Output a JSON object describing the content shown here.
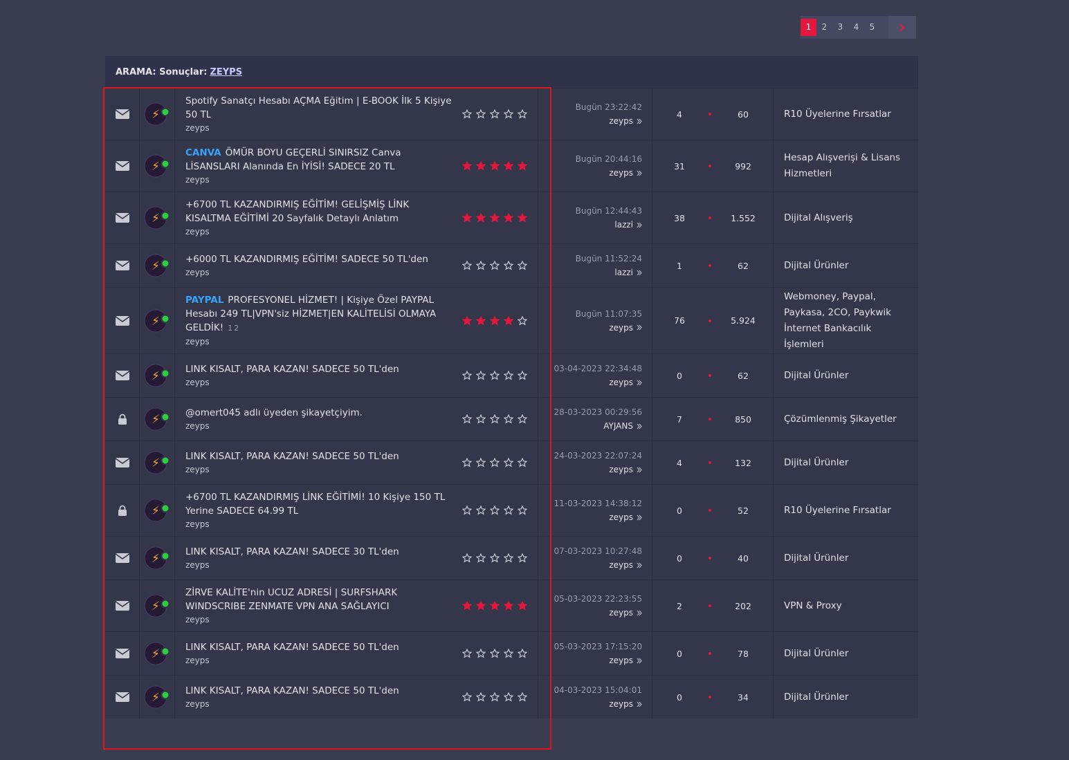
{
  "pagination": {
    "pages": [
      "1",
      "2",
      "3",
      "4",
      "5"
    ],
    "active": 0
  },
  "header": {
    "label": "ARAMA: Sonuçlar:",
    "query": "ZEYPS"
  },
  "rows": [
    {
      "locked": false,
      "prefix": null,
      "title": "Spotify Sanatçı Hesabı AÇMA Eğitim | E-BOOK İlk 5 Kişiye 50 TL",
      "pages": null,
      "author": "zeyps",
      "rating": 0,
      "last_date": "Bugün 23:22:42",
      "last_user": "zeyps",
      "replies": "4",
      "views": "60",
      "forum": "R10 Üyelerine Fırsatlar"
    },
    {
      "locked": false,
      "prefix": "CANVA",
      "title": "ÖMÜR BOYU GEÇERLİ SINIRSIZ Canva LİSANSLARI Alanında En İYİSİ! SADECE 20 TL",
      "pages": null,
      "author": "zeyps",
      "rating": 5,
      "last_date": "Bugün 20:44:16",
      "last_user": "zeyps",
      "replies": "31",
      "views": "992",
      "forum": "Hesap Alışverişi & Lisans Hizmetleri"
    },
    {
      "locked": false,
      "prefix": null,
      "title": "+6700 TL KAZANDIRMIŞ EĞİTİM! GELİŞMİŞ LİNK KISALTMA EĞİTİMİ 20 Sayfalık Detaylı Anlatım",
      "pages": null,
      "author": "zeyps",
      "rating": 5,
      "last_date": "Bugün 12:44:43",
      "last_user": "lazzi",
      "replies": "38",
      "views": "1.552",
      "forum": "Dijital Alışveriş"
    },
    {
      "locked": false,
      "prefix": null,
      "title": "+6000 TL KAZANDIRMIŞ EĞİTİM! SADECE 50 TL'den",
      "pages": null,
      "author": "zeyps",
      "rating": 0,
      "last_date": "Bugün 11:52:24",
      "last_user": "lazzi",
      "replies": "1",
      "views": "62",
      "forum": "Dijital Ürünler"
    },
    {
      "locked": false,
      "prefix": "PAYPAL",
      "title": "PROFESYONEL HİZMET! | Kişiye Özel PAYPAL Hesabı 249 TL|VPN'siz HİZMET|EN KALİTELİSİ OLMAYA GELDİK!",
      "pages": [
        "1",
        "2"
      ],
      "author": "zeyps",
      "rating": 4,
      "last_date": "Bugün 11:07:35",
      "last_user": "zeyps",
      "replies": "76",
      "views": "5.924",
      "forum": "Webmoney, Paypal, Paykasa, 2CO, Paykwik İnternet Bankacılık İşlemleri"
    },
    {
      "locked": false,
      "prefix": null,
      "title": "LINK KISALT, PARA KAZAN! SADECE 50 TL'den",
      "pages": null,
      "author": "zeyps",
      "rating": 0,
      "last_date": "03-04-2023 22:34:48",
      "last_user": "zeyps",
      "replies": "0",
      "views": "62",
      "forum": "Dijital Ürünler"
    },
    {
      "locked": true,
      "prefix": null,
      "title": "@omert045 adlı üyeden şikayetçiyim.",
      "pages": null,
      "author": "zeyps",
      "rating": 0,
      "last_date": "28-03-2023 00:29:56",
      "last_user": "AYJANS",
      "replies": "7",
      "views": "850",
      "forum": "Çözümlenmiş Şikayetler"
    },
    {
      "locked": false,
      "prefix": null,
      "title": "LINK KISALT, PARA KAZAN! SADECE 50 TL'den",
      "pages": null,
      "author": "zeyps",
      "rating": 0,
      "last_date": "24-03-2023 22:07:24",
      "last_user": "zeyps",
      "replies": "4",
      "views": "132",
      "forum": "Dijital Ürünler"
    },
    {
      "locked": true,
      "prefix": null,
      "title": "+6700 TL KAZANDIRMIŞ LİNK EĞİTİMİ! 10 Kişiye 150 TL Yerine SADECE 64.99 TL",
      "pages": null,
      "author": "zeyps",
      "rating": 0,
      "last_date": "11-03-2023 14:38:12",
      "last_user": "zeyps",
      "replies": "0",
      "views": "52",
      "forum": "R10 Üyelerine Fırsatlar"
    },
    {
      "locked": false,
      "prefix": null,
      "title": "LINK KISALT, PARA KAZAN! SADECE 30 TL'den",
      "pages": null,
      "author": "zeyps",
      "rating": 0,
      "last_date": "07-03-2023 10:27:48",
      "last_user": "zeyps",
      "replies": "0",
      "views": "40",
      "forum": "Dijital Ürünler"
    },
    {
      "locked": false,
      "prefix": null,
      "title": "ZİRVE KALİTE'nin UCUZ ADRESİ | SURFSHARK WINDSCRIBE ZENMATE VPN ANA SAĞLAYICI",
      "pages": null,
      "author": "zeyps",
      "rating": 5,
      "last_date": "05-03-2023 22:23:55",
      "last_user": "zeyps",
      "replies": "2",
      "views": "202",
      "forum": "VPN & Proxy"
    },
    {
      "locked": false,
      "prefix": null,
      "title": "LINK KISALT, PARA KAZAN! SADECE 50 TL'den",
      "pages": null,
      "author": "zeyps",
      "rating": 0,
      "last_date": "05-03-2023 17:15:20",
      "last_user": "zeyps",
      "replies": "0",
      "views": "78",
      "forum": "Dijital Ürünler"
    },
    {
      "locked": false,
      "prefix": null,
      "title": "LINK KISALT, PARA KAZAN! SADECE 50 TL'den",
      "pages": null,
      "author": "zeyps",
      "rating": 0,
      "last_date": "04-03-2023 15:04:01",
      "last_user": "zeyps",
      "replies": "0",
      "views": "34",
      "forum": "Dijital Ürünler"
    }
  ]
}
